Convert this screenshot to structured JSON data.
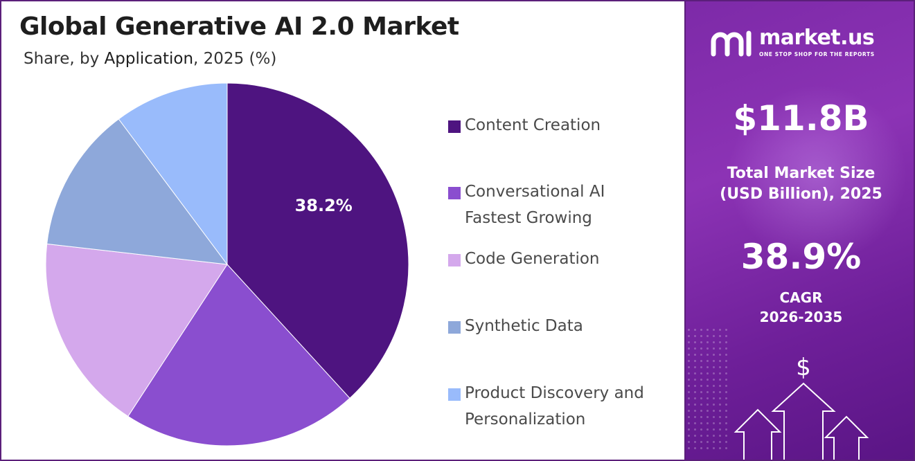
{
  "title": "Global Generative AI 2.0 Market",
  "subtitle": {
    "prefix": "Share, by ",
    "highlight": "Application",
    "suffix": ", 2025 (%)"
  },
  "chart_data": {
    "type": "pie",
    "categories": [
      "Content Creation",
      "Conversational AI Fastest Growing",
      "Code Generation",
      "Synthetic Data",
      "Product Discovery and Personalization"
    ],
    "values": [
      38.2,
      21.0,
      17.6,
      13.0,
      10.2
    ],
    "colors": [
      "#4e1480",
      "#8a4ecf",
      "#d4a8ec",
      "#8ea8da",
      "#99bbfb"
    ],
    "data_labels": [
      "38.2%",
      "",
      "",
      "",
      ""
    ],
    "legend_placement": "right"
  },
  "legend": [
    {
      "label": "Content Creation",
      "color": "#4e1480"
    },
    {
      "label": "Conversational AI\nFastest Growing",
      "color": "#8a4ecf"
    },
    {
      "label": "Code Generation",
      "color": "#d4a8ec"
    },
    {
      "label": "Synthetic Data",
      "color": "#8ea8da"
    },
    {
      "label": "Product Discovery and\nPersonalization",
      "color": "#99bbfb"
    }
  ],
  "brand": {
    "name": "market.us",
    "tagline": "ONE STOP SHOP FOR THE REPORTS",
    "logo_icon": "market-us-logo-icon"
  },
  "stats": {
    "market_size": "$11.8B",
    "market_size_label_1": "Total Market Size",
    "market_size_label_2": "(USD Billion), 2025",
    "cagr": "38.9%",
    "cagr_label_1": "CAGR",
    "cagr_label_2": "2026-2035"
  },
  "decoration": {
    "currency_symbol": "$",
    "icon": "rising-arrows-icon"
  },
  "colors": {
    "panel_purple": "#7d2aa8",
    "title_text": "#1e1e1e",
    "legend_text": "#4a4a4a"
  }
}
